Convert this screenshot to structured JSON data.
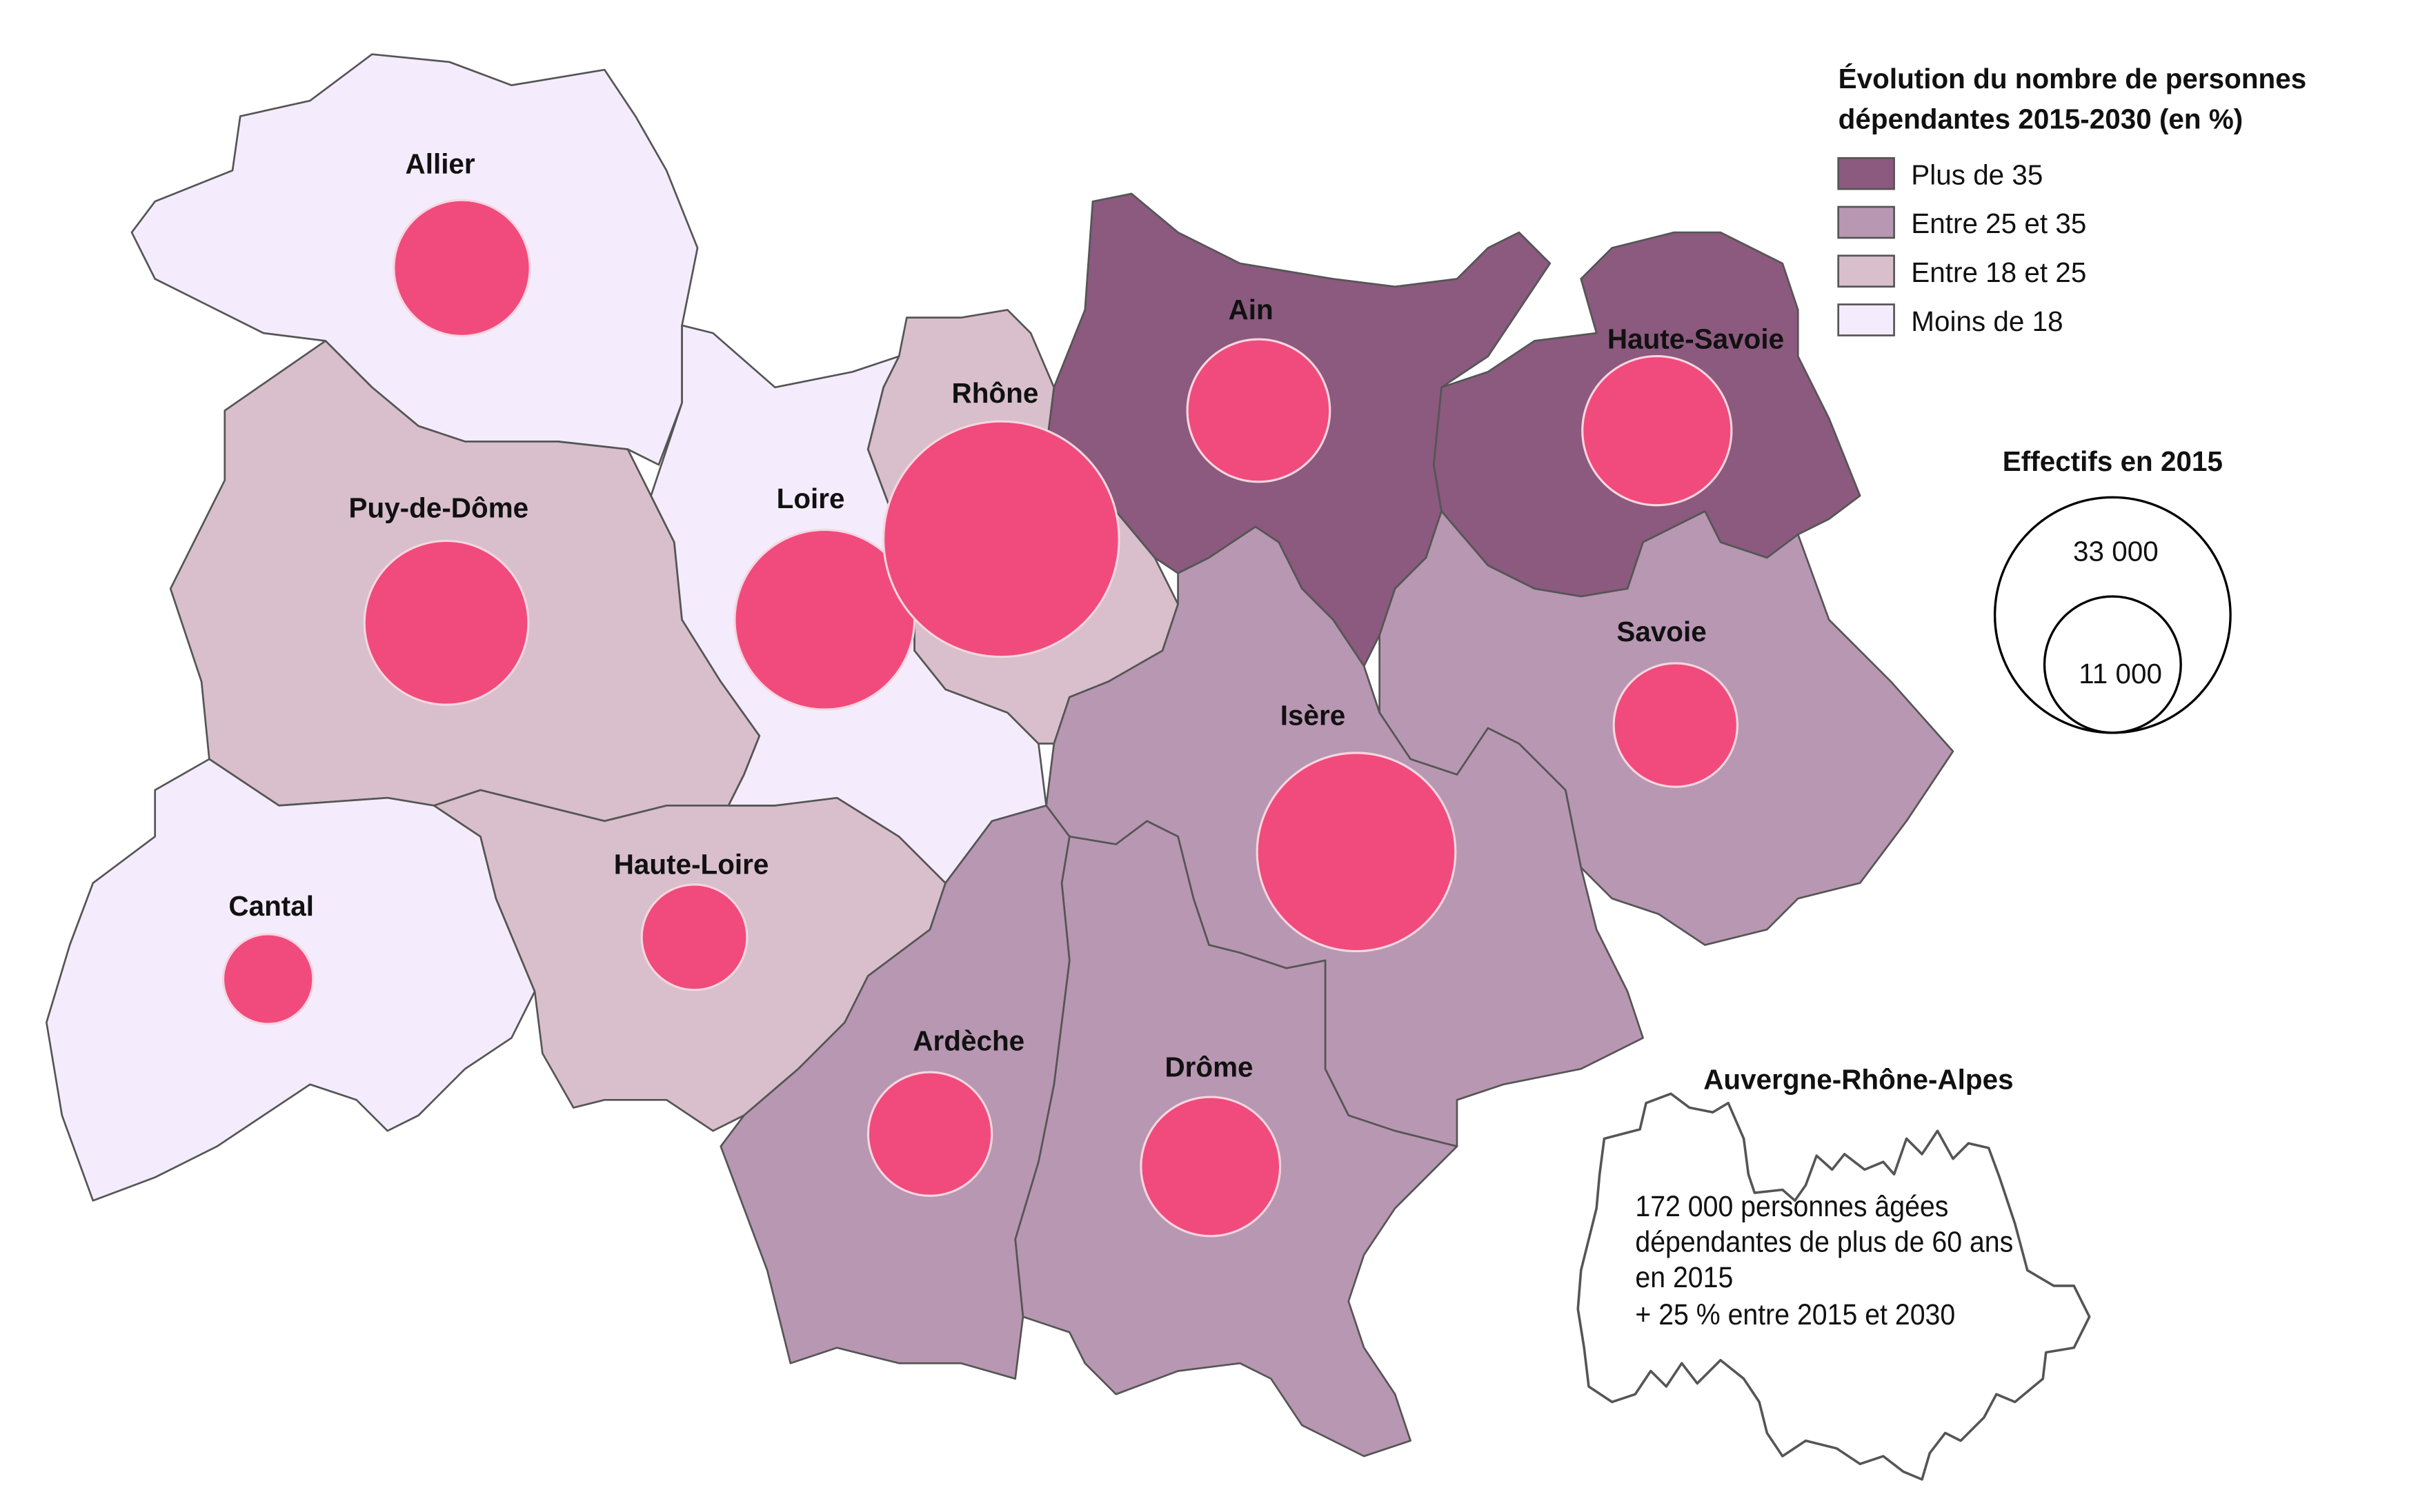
{
  "legend": {
    "title_line1": "Évolution du nombre de personnes",
    "title_line2": "dépendantes 2015-2030 (en %)",
    "classes": [
      {
        "id": "c1",
        "label": "Plus de 35",
        "color": "#8b5a7e"
      },
      {
        "id": "c2",
        "label": "Entre 25 et 35",
        "color": "#b897b2"
      },
      {
        "id": "c3",
        "label": "Entre 18 et 25",
        "color": "#d8bfcb"
      },
      {
        "id": "c4",
        "label": "Moins de 18",
        "color": "#f4ecfc"
      }
    ]
  },
  "size_legend": {
    "title": "Effectifs en 2015",
    "large_label": "33 000",
    "large_value": 33000,
    "small_label": "11 000",
    "small_value": 11000
  },
  "bubble_color": "#f04b7c",
  "departments": [
    {
      "id": "allier",
      "name": "Allier",
      "class": "c4",
      "effectif_2015_estimate": 11000
    },
    {
      "id": "puy",
      "name": "Puy-de-Dôme",
      "class": "c3",
      "effectif_2015_estimate": 16000
    },
    {
      "id": "cantal",
      "name": "Cantal",
      "class": "c4",
      "effectif_2015_estimate": 4800
    },
    {
      "id": "hloire",
      "name": "Haute-Loire",
      "class": "c3",
      "effectif_2015_estimate": 6600
    },
    {
      "id": "loire",
      "name": "Loire",
      "class": "c4",
      "effectif_2015_estimate": 19200
    },
    {
      "id": "rhone",
      "name": "Rhône",
      "class": "c3",
      "effectif_2015_estimate": 33000
    },
    {
      "id": "ain",
      "name": "Ain",
      "class": "c1",
      "effectif_2015_estimate": 12100
    },
    {
      "id": "hsavoie",
      "name": "Haute-Savoie",
      "class": "c1",
      "effectif_2015_estimate": 13200
    },
    {
      "id": "savoie",
      "name": "Savoie",
      "class": "c2",
      "effectif_2015_estimate": 9100
    },
    {
      "id": "isere",
      "name": "Isère",
      "class": "c2",
      "effectif_2015_estimate": 23400
    },
    {
      "id": "drome",
      "name": "Drôme",
      "class": "c2",
      "effectif_2015_estimate": 11500
    },
    {
      "id": "ardeche",
      "name": "Ardèche",
      "class": "c2",
      "effectif_2015_estimate": 9100
    }
  ],
  "inset": {
    "title": "Auvergne-Rhône-Alpes",
    "lines": [
      "172 000 personnes âgées",
      "dépendantes de plus de 60 ans",
      "en 2015",
      "+ 25 % entre 2015 et 2030"
    ]
  }
}
